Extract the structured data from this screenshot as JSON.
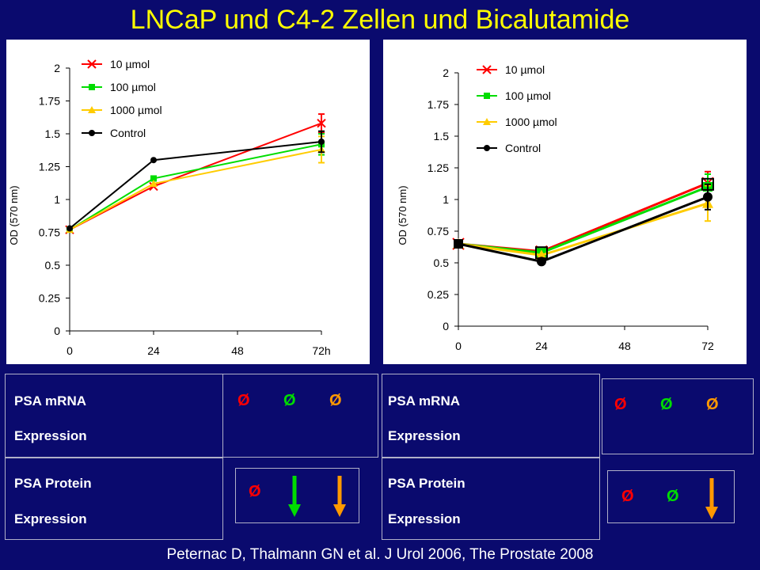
{
  "title": "LNCaP und C4-2 Zellen und Bicalutamide",
  "colors": {
    "background": "#0a0a6e",
    "title": "#ffff00",
    "red": "#ff0000",
    "green": "#00dd00",
    "orange": "#ff9900",
    "yellow": "#ffcc00",
    "black": "#000000"
  },
  "chart_data": [
    {
      "type": "line",
      "ylabel": "OD (570 nm)",
      "xlabel": "",
      "x": [
        0,
        24,
        48,
        72
      ],
      "x_tick_labels": [
        "0",
        "24",
        "48",
        "72h"
      ],
      "y_ticks": [
        "0",
        "0.25",
        "0.5",
        "0.75",
        "1",
        "1.25",
        "1.5",
        "1.75",
        "2"
      ],
      "ylim": [
        0,
        2
      ],
      "legend_position": "top-left",
      "series": [
        {
          "name": "10 µmol",
          "color": "#ff0000",
          "marker": "x",
          "x": [
            0,
            24,
            72
          ],
          "values": [
            0.77,
            1.1,
            1.58
          ],
          "error": [
            0,
            0,
            0.07
          ]
        },
        {
          "name": "100 µmol",
          "color": "#00dd00",
          "marker": "square",
          "x": [
            0,
            24,
            72
          ],
          "values": [
            0.77,
            1.16,
            1.42
          ],
          "error": [
            0,
            0,
            0.08
          ]
        },
        {
          "name": "1000 µmol",
          "color": "#ffcc00",
          "marker": "triangle",
          "x": [
            0,
            24,
            72
          ],
          "values": [
            0.77,
            1.12,
            1.38
          ],
          "error": [
            0,
            0,
            0.1
          ]
        },
        {
          "name": "Control",
          "color": "#000000",
          "marker": "circle",
          "x": [
            0,
            24,
            72
          ],
          "values": [
            0.78,
            1.3,
            1.44
          ],
          "error": [
            0,
            0,
            0.08
          ]
        }
      ]
    },
    {
      "type": "line",
      "ylabel": "OD (570 nm)",
      "xlabel": "",
      "x": [
        0,
        24,
        48,
        72
      ],
      "x_tick_labels": [
        "0",
        "24",
        "48",
        "72"
      ],
      "y_ticks": [
        "0",
        "0.25",
        "0.5",
        "0.75",
        "1",
        "1.25",
        "1.5",
        "1.75",
        "2"
      ],
      "ylim": [
        0,
        2
      ],
      "legend_position": "top-left",
      "series": [
        {
          "name": "10 µmol",
          "color": "#ff0000",
          "marker": "x",
          "x": [
            0,
            24,
            72
          ],
          "values": [
            0.65,
            0.59,
            1.13
          ],
          "error": [
            0,
            0,
            0.09
          ]
        },
        {
          "name": "100 µmol",
          "color": "#00dd00",
          "marker": "square",
          "x": [
            0,
            24,
            72
          ],
          "values": [
            0.65,
            0.58,
            1.1
          ],
          "error": [
            0,
            0,
            0.1
          ]
        },
        {
          "name": "1000 µmol",
          "color": "#ffcc00",
          "marker": "triangle",
          "x": [
            0,
            24,
            72
          ],
          "values": [
            0.65,
            0.56,
            0.97
          ],
          "error": [
            0,
            0,
            0.14
          ]
        },
        {
          "name": "Control",
          "color": "#000000",
          "marker": "circle",
          "x": [
            0,
            24,
            72
          ],
          "values": [
            0.65,
            0.51,
            1.02
          ],
          "error": [
            0,
            0,
            0.1
          ]
        }
      ]
    }
  ],
  "tables": {
    "left": {
      "mrna_line1": "PSA mRNA",
      "mrna_line2": "Expression",
      "protein_line1": "PSA Protein",
      "protein_line2": "Expression",
      "mrna_symbols": [
        "Ø",
        "Ø",
        "Ø"
      ],
      "protein_symbols": [
        "Ø"
      ]
    },
    "right": {
      "mrna_line1": "PSA mRNA",
      "mrna_line2": "Expression",
      "protein_line1": "PSA Protein",
      "protein_line2": "Expression",
      "mrna_symbols": [
        "Ø",
        "Ø",
        "Ø"
      ],
      "protein_symbols": [
        "Ø",
        "Ø"
      ]
    }
  },
  "footer": "Peternac D, Thalmann GN et al. J Urol 2006, The Prostate 2008"
}
